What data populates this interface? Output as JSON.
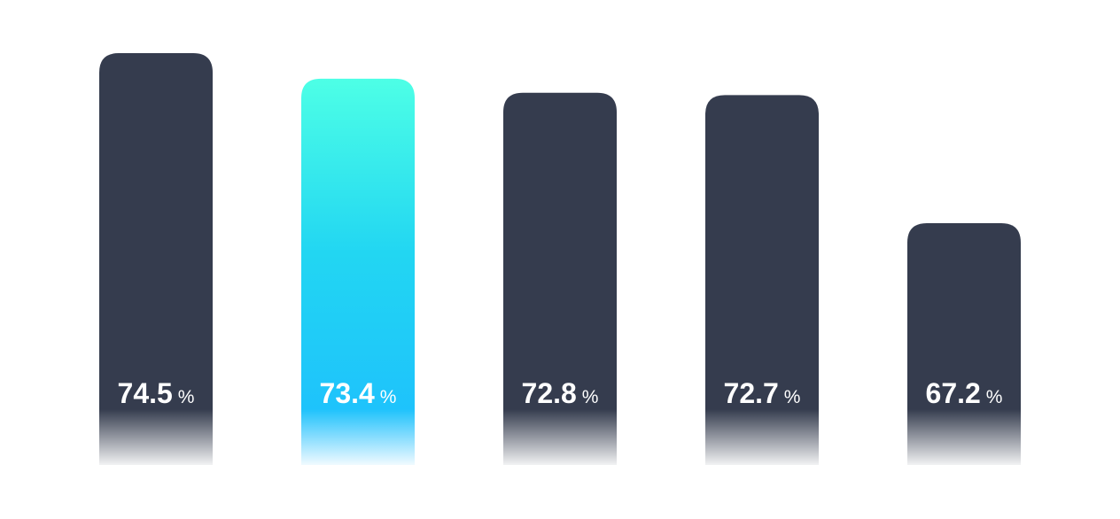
{
  "chart_data": {
    "type": "bar",
    "unit": "%",
    "values": [
      74.5,
      73.4,
      72.8,
      72.7,
      67.2
    ],
    "colors": [
      "#353c4e",
      "#22d6f2",
      "#353c4e",
      "#353c4e",
      "#353c4e"
    ]
  }
}
